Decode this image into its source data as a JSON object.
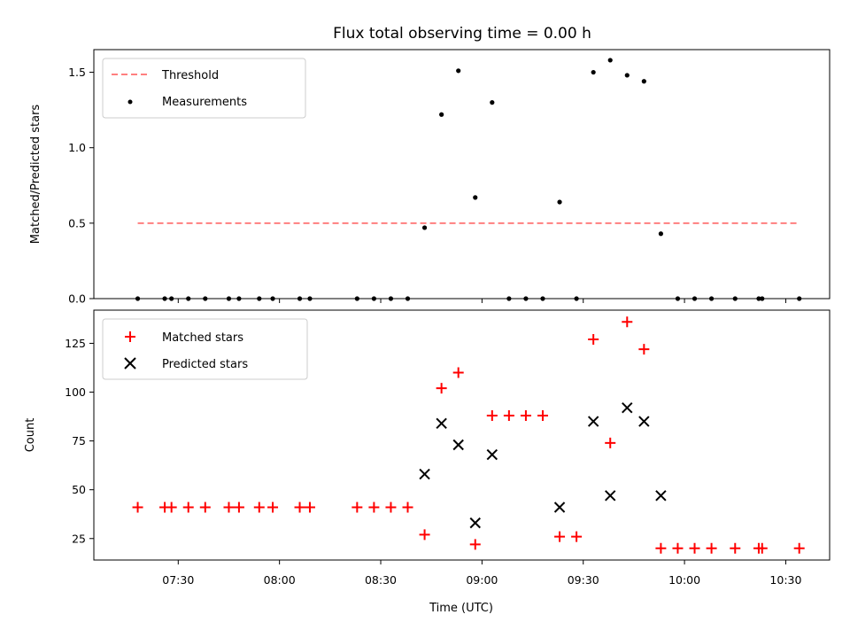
{
  "chart_data": [
    {
      "type": "scatter",
      "title": "Flux total observing time = 0.00 h",
      "xlabel": "",
      "ylabel": "Matched/Predicted stars",
      "xlim": [
        "07:05",
        "10:43"
      ],
      "ylim": [
        0,
        1.65
      ],
      "yticks": [
        0,
        0.5,
        1.0,
        1.5
      ],
      "ytick_labels": [
        "0.0",
        "0.5",
        "1.0",
        "1.5"
      ],
      "grid": false,
      "legend": "top-left",
      "threshold": {
        "name": "Threshold",
        "value": 0.5,
        "x_range": [
          "07:18",
          "10:34"
        ],
        "color": "#ff7f7f",
        "style": "dashed"
      },
      "series": [
        {
          "name": "Measurements",
          "marker": "dot",
          "color": "#000000",
          "x": [
            "07:18",
            "07:26",
            "07:28",
            "07:33",
            "07:38",
            "07:45",
            "07:48",
            "07:54",
            "07:58",
            "08:06",
            "08:09",
            "08:23",
            "08:28",
            "08:33",
            "08:38",
            "08:43",
            "08:48",
            "08:53",
            "08:58",
            "09:03",
            "09:08",
            "09:13",
            "09:18",
            "09:23",
            "09:28",
            "09:33",
            "09:38",
            "09:43",
            "09:48",
            "09:53",
            "09:58",
            "10:03",
            "10:08",
            "10:15",
            "10:22",
            "10:23",
            "10:34"
          ],
          "values": [
            0,
            0,
            0,
            0,
            0,
            0,
            0,
            0,
            0,
            0,
            0,
            0,
            0,
            0,
            0,
            0.47,
            1.22,
            1.51,
            0.67,
            1.3,
            0,
            0,
            0,
            0.64,
            0,
            1.5,
            1.58,
            1.48,
            1.44,
            0.43,
            0,
            0,
            0,
            0,
            0,
            0,
            0
          ]
        }
      ]
    },
    {
      "type": "scatter",
      "title": "",
      "xlabel": "Time (UTC)",
      "ylabel": "Count",
      "xlim": [
        "07:05",
        "10:43"
      ],
      "ylim": [
        14,
        142
      ],
      "yticks": [
        25,
        50,
        75,
        100,
        125
      ],
      "ytick_labels": [
        "25",
        "50",
        "75",
        "100",
        "125"
      ],
      "xticks": [
        "07:30",
        "08:00",
        "08:30",
        "09:00",
        "09:30",
        "10:00",
        "10:30"
      ],
      "xtick_labels": [
        "07:30",
        "08:00",
        "08:30",
        "09:00",
        "09:30",
        "10:00",
        "10:30"
      ],
      "grid": false,
      "legend": "top-left",
      "series": [
        {
          "name": "Matched stars",
          "marker": "plus",
          "color": "#ff0000",
          "x": [
            "07:18",
            "07:26",
            "07:28",
            "07:33",
            "07:38",
            "07:45",
            "07:48",
            "07:54",
            "07:58",
            "08:06",
            "08:09",
            "08:23",
            "08:28",
            "08:33",
            "08:38",
            "08:43",
            "08:48",
            "08:53",
            "08:58",
            "09:03",
            "09:08",
            "09:13",
            "09:18",
            "09:23",
            "09:28",
            "09:33",
            "09:38",
            "09:43",
            "09:48",
            "09:53",
            "09:58",
            "10:03",
            "10:08",
            "10:15",
            "10:22",
            "10:23",
            "10:34"
          ],
          "values": [
            41,
            41,
            41,
            41,
            41,
            41,
            41,
            41,
            41,
            41,
            41,
            41,
            41,
            41,
            41,
            27,
            102,
            110,
            22,
            88,
            88,
            88,
            88,
            26,
            26,
            127,
            74,
            136,
            122,
            20,
            20,
            20,
            20,
            20,
            20,
            20,
            20
          ]
        },
        {
          "name": "Predicted stars",
          "marker": "x",
          "color": "#000000",
          "x": [
            "08:43",
            "08:48",
            "08:53",
            "08:58",
            "09:03",
            "09:23",
            "09:33",
            "09:38",
            "09:43",
            "09:48",
            "09:53"
          ],
          "values": [
            58,
            84,
            73,
            33,
            68,
            41,
            85,
            47,
            92,
            85,
            47
          ]
        }
      ]
    }
  ]
}
